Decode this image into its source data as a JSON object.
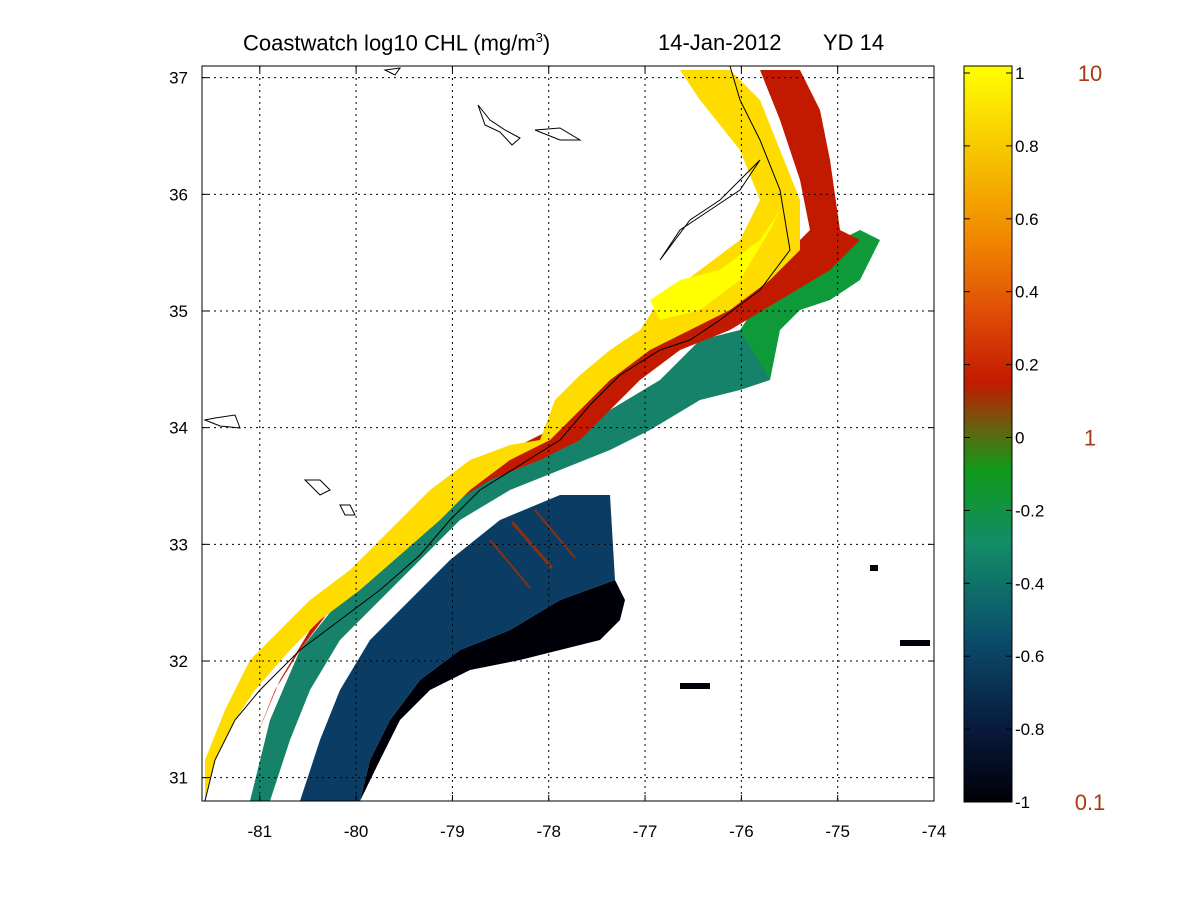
{
  "title": {
    "main": "Coastwatch  log10  CHL (mg/m",
    "sup": "3",
    "close": ")",
    "date": "14-Jan-2012",
    "yearday": "YD 14"
  },
  "map": {
    "lon_range": [
      -81.6,
      -74.0
    ],
    "lat_range": [
      30.8,
      37.1
    ],
    "lon_ticks": [
      "-81",
      "-80",
      "-79",
      "-78",
      "-77",
      "-76",
      "-75",
      "-74"
    ],
    "lat_ticks": [
      "31",
      "32",
      "33",
      "34",
      "35",
      "36",
      "37"
    ],
    "grid": "dotted"
  },
  "colorbar": {
    "range": [
      -1,
      1
    ],
    "ticks": [
      "1",
      "0.8",
      "0.6",
      "0.4",
      "0.2",
      "0",
      "-0.2",
      "-0.4",
      "-0.6",
      "-0.8",
      "-1"
    ],
    "linear_labels": [
      "10",
      "1",
      "0.1"
    ],
    "colors": [
      "#000008",
      "#081a3c",
      "#0b4c6a",
      "#138c68",
      "#0f9a1a",
      "#5a6a10",
      "#c21a00",
      "#e05008",
      "#f28a00",
      "#f6c400",
      "#ffff00"
    ]
  }
}
